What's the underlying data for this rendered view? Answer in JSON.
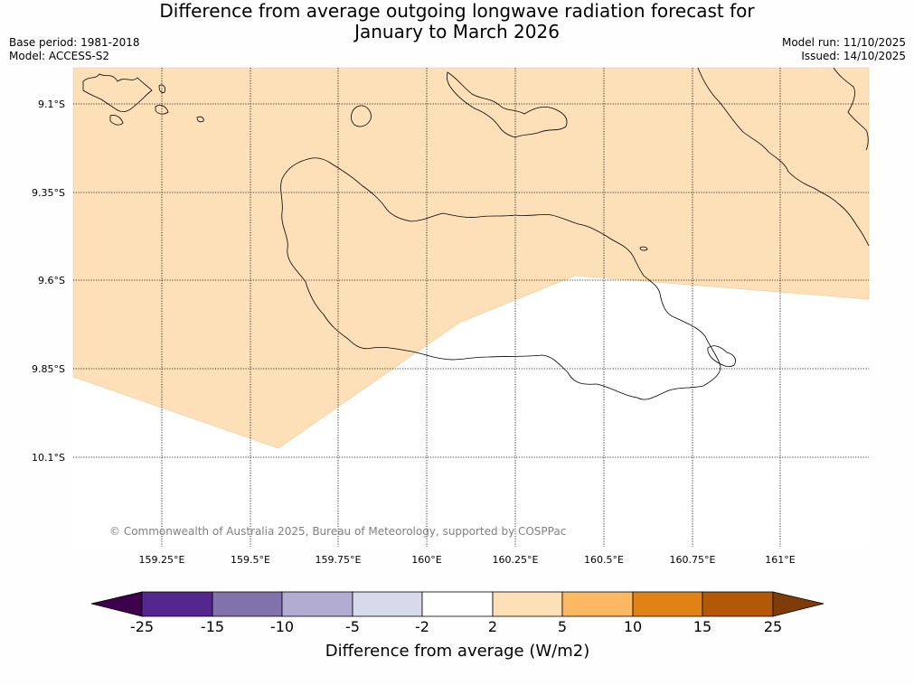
{
  "title": {
    "line1": "Difference from average outgoing longwave radiation forecast for",
    "line2": "January to March 2026"
  },
  "info": {
    "base_period": "Base period: 1981-2018",
    "model": "Model: ACCESS-S2",
    "model_run": "Model run: 11/10/2025",
    "issued": "Issued: 14/10/2025"
  },
  "map": {
    "lat_labels": [
      "9.1°S",
      "9.35°S",
      "9.6°S",
      "9.85°S",
      "10.1°S"
    ],
    "lon_labels": [
      "159.25°E",
      "159.5°E",
      "159.75°E",
      "160°E",
      "160.25°E",
      "160.5°E",
      "160.75°E",
      "161°E"
    ],
    "copyright": "© Commonwealth of Australia 2025, Bureau of Meteorology, supported by COSPPac",
    "shaded_category": "2 to 5",
    "shaded_color": "#fde0b8"
  },
  "legend": {
    "label": "Difference from average (W/m2)",
    "ticks": [
      "-25",
      "-15",
      "-10",
      "-5",
      "-2",
      "2",
      "5",
      "10",
      "15",
      "25"
    ],
    "colors": {
      "lt_-25": "#3d004d",
      "-25_-15": "#54278f",
      "-15_-10": "#8073ac",
      "-10_-5": "#b2abd2",
      "-5_-2": "#d8daeb",
      "-2_2": "#ffffff",
      "2_5": "#fee0b6",
      "5_10": "#fdb863",
      "10_15": "#e08214",
      "15_25": "#b35806",
      "gt_25": "#7f3b08"
    }
  }
}
